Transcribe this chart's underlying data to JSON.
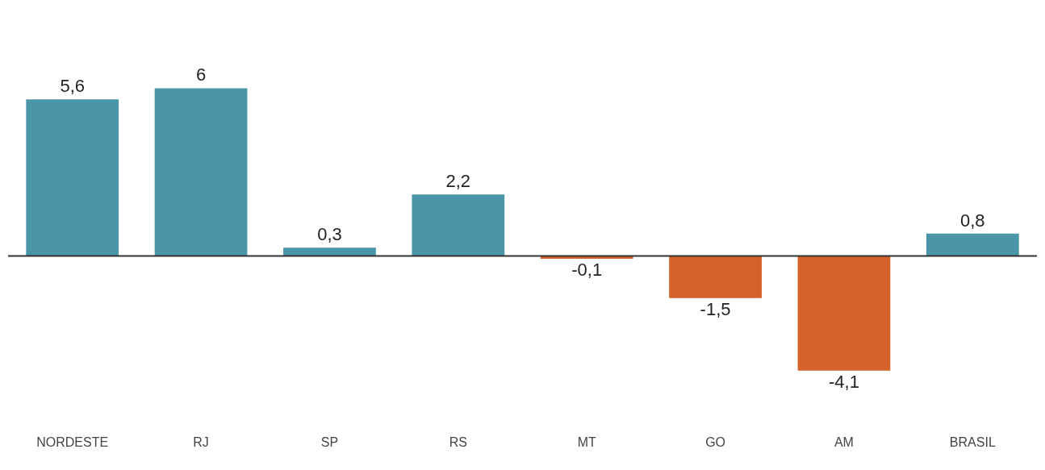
{
  "chart_data": {
    "type": "bar",
    "categories": [
      "NORDESTE",
      "RJ",
      "SP",
      "RS",
      "MT",
      "GO",
      "AM",
      "BRASIL"
    ],
    "values": [
      5.6,
      6,
      0.3,
      2.2,
      -0.1,
      -1.5,
      -4.1,
      0.8
    ],
    "colors": [
      "#4a95a8",
      "#4a95a8",
      "#4a95a8",
      "#4a95a8",
      "#d4622a",
      "#d4622a",
      "#d4622a",
      "#4a95a8"
    ],
    "value_labels": [
      "5,6",
      "6",
      "0,3",
      "2,2",
      "-0,1",
      "-1,5",
      "-4,1",
      "0,8"
    ],
    "grid": false,
    "legend": false
  }
}
